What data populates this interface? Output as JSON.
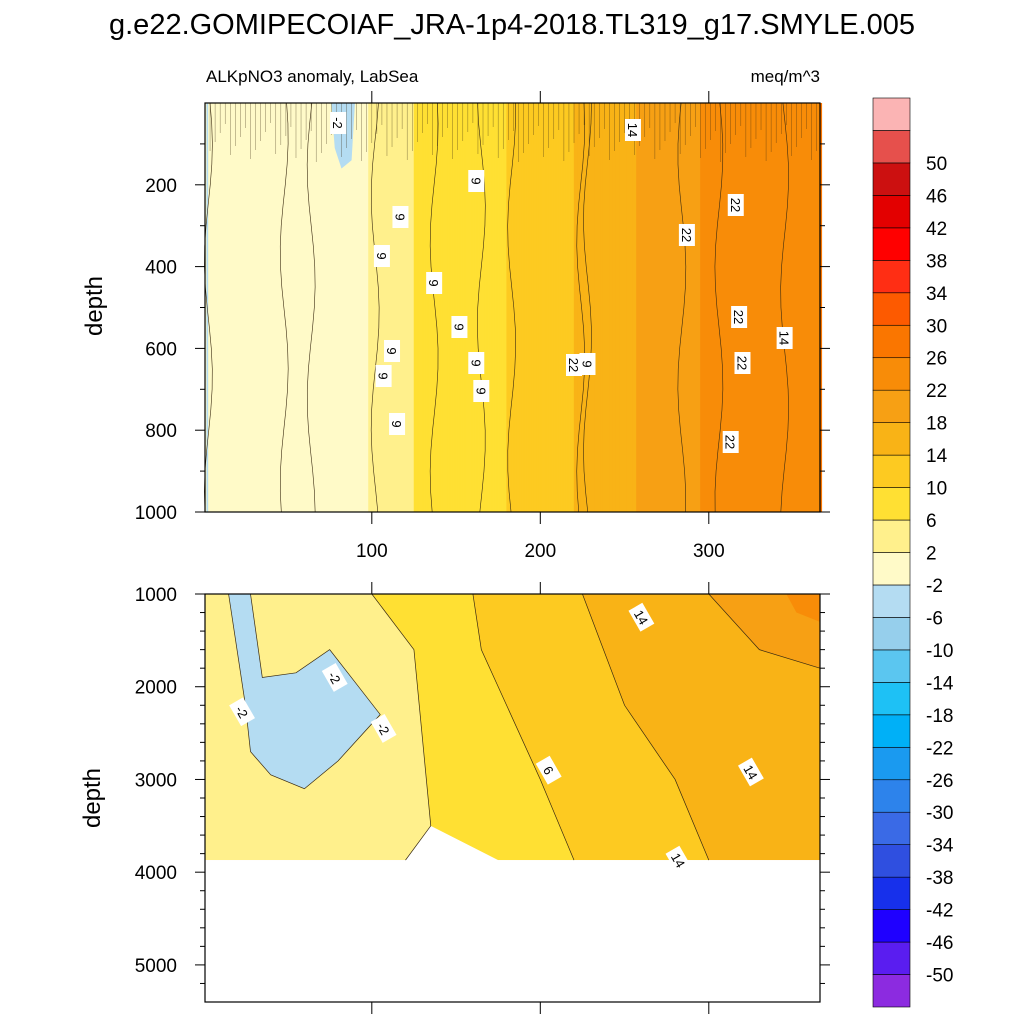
{
  "title": "g.e22.GOMIPECOIAF_JRA-1p4-2018.TL319_g17.SMYLE.005",
  "colors": {
    "levels": [
      "#8c2be0",
      "#5a1df0",
      "#1f00ff",
      "#1730eb",
      "#2f4fe0",
      "#3a6ae6",
      "#2d83eb",
      "#1a9af0",
      "#00b0f7",
      "#1ec1f5",
      "#5bc6f0",
      "#96cfec",
      "#b4dcf2",
      "#fffac8",
      "#fff08c",
      "#ffe033",
      "#fdca21",
      "#f9b316",
      "#f7a014",
      "#f88c08",
      "#fa7600",
      "#fd5a00",
      "#ff2e14",
      "#ff0000",
      "#e30000",
      "#cc1010",
      "#e6504c",
      "#fbb4b4"
    ],
    "contour": "#3a2a10",
    "frame": "#000000"
  },
  "chart_data": {
    "type": "heatmap",
    "subtitle_left": "ALKpNO3 anomaly, LabSea",
    "subtitle_right": "meq/m^3",
    "ylabel_top": "depth",
    "ylabel_bottom": "depth",
    "x_range": [
      1,
      366
    ],
    "x_ticks": [
      "100",
      "200",
      "300"
    ],
    "top_panel": {
      "ylim": [
        1000,
        0
      ],
      "y_ticks": [
        "200",
        "400",
        "600",
        "800",
        "1000"
      ],
      "contour_labels": [
        "-2",
        "14",
        "9",
        "9",
        "9",
        "9",
        "9",
        "9",
        "9",
        "9",
        "9",
        "9",
        "9",
        "22",
        "22",
        "22",
        "22",
        "22",
        "14",
        "22"
      ]
    },
    "bottom_panel": {
      "ylim": [
        5400,
        1000
      ],
      "y_ticks": [
        "1000",
        "2000",
        "3000",
        "4000",
        "5000"
      ],
      "data_bottom_depth": 3870,
      "contour_labels": [
        "-2",
        "-2",
        "-2",
        "6",
        "14",
        "14",
        "14"
      ]
    },
    "colorbar": {
      "labels": [
        "-50",
        "-46",
        "-42",
        "-38",
        "-34",
        "-30",
        "-26",
        "-22",
        "-18",
        "-14",
        "-10",
        "-6",
        "-2",
        "2",
        "6",
        "10",
        "14",
        "18",
        "22",
        "26",
        "30",
        "34",
        "38",
        "42",
        "46",
        "50"
      ]
    }
  }
}
